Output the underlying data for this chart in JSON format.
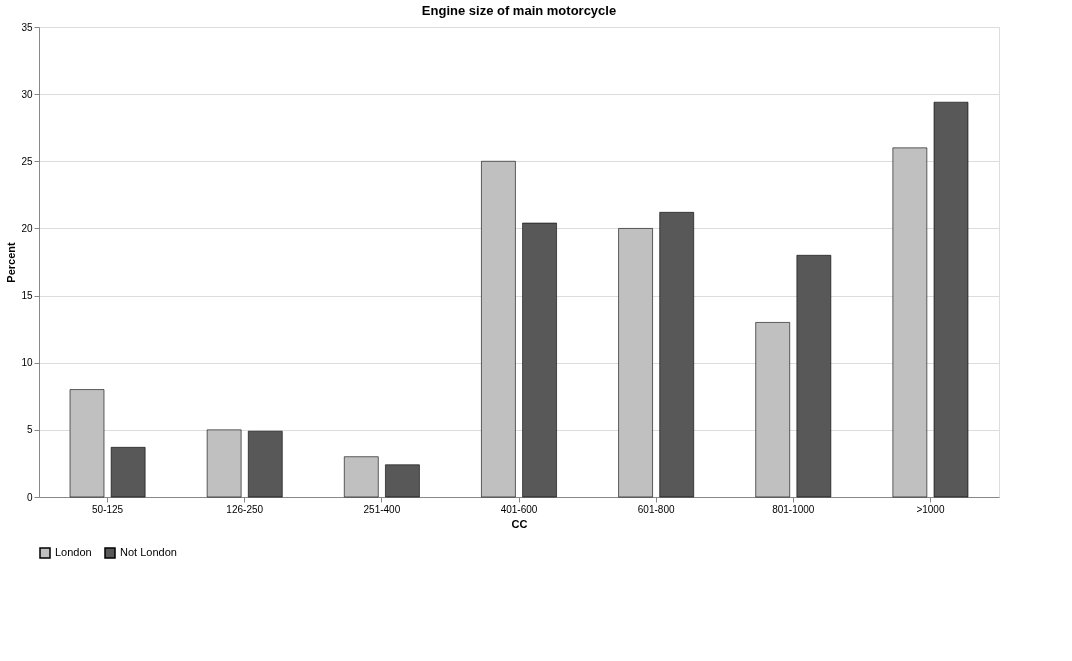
{
  "chart_data": {
    "type": "bar",
    "title": "Engine size of main motorcycle",
    "xlabel": "CC",
    "ylabel": "Percent",
    "categories": [
      "50-125",
      "126-250",
      "251-400",
      "401-600",
      "601-800",
      "801-1000",
      ">1000"
    ],
    "series": [
      {
        "name": "London",
        "color": "#c0c0c0",
        "values": [
          8,
          5,
          3,
          25,
          20,
          13,
          26
        ]
      },
      {
        "name": "Not London",
        "color": "#585858",
        "values": [
          3.7,
          4.9,
          2.4,
          20.4,
          21.2,
          18,
          29.4
        ]
      }
    ],
    "ylim": [
      0,
      35
    ],
    "yticks": [
      0,
      5,
      10,
      15,
      20,
      25,
      30,
      35
    ],
    "grid": "y",
    "legend": "bottom"
  }
}
